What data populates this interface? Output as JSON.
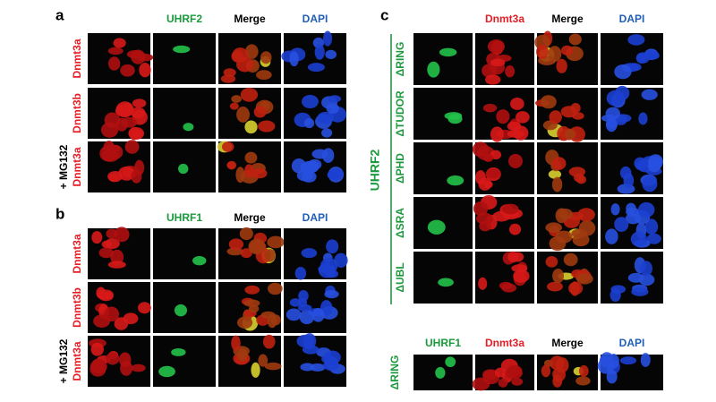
{
  "panels": [
    {
      "label": "a",
      "columns": [
        "UHRF2",
        "Merge",
        "DAPI"
      ],
      "rows": [
        {
          "labels": [
            "Dnmt3a"
          ]
        },
        {
          "labels": [
            "Dnmt3b"
          ]
        },
        {
          "labels": [
            "+ MG132",
            "Dnmt3a"
          ]
        }
      ]
    },
    {
      "label": "b",
      "columns": [
        "UHRF1",
        "Merge",
        "DAPI"
      ],
      "rows": [
        {
          "labels": [
            "Dnmt3a"
          ]
        },
        {
          "labels": [
            "Dnmt3b"
          ]
        },
        {
          "labels": [
            "+ MG132",
            "Dnmt3a"
          ]
        }
      ]
    },
    {
      "label": "c",
      "group_label": "UHRF2",
      "columns": [
        "Dnmt3a",
        "Merge",
        "DAPI"
      ],
      "rows": [
        {
          "labels": [
            "ΔRING"
          ]
        },
        {
          "labels": [
            "ΔTUDOR"
          ]
        },
        {
          "labels": [
            "ΔPHD"
          ]
        },
        {
          "labels": [
            "ΔSRA"
          ]
        },
        {
          "labels": [
            "ΔUBL"
          ]
        }
      ],
      "subpanel": {
        "columns": [
          "UHRF1",
          "Dnmt3a",
          "Merge",
          "DAPI"
        ],
        "rows": [
          {
            "labels": [
              "ΔRING"
            ]
          }
        ]
      }
    }
  ]
}
